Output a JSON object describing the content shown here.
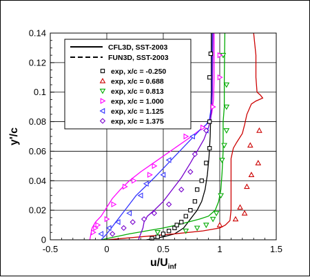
{
  "chart_data": {
    "type": "line",
    "xlabel": "u/U",
    "xlabel_sub": "inf",
    "ylabel": "y'/c",
    "xlim": [
      -0.5,
      1.5
    ],
    "ylim": [
      0,
      0.14
    ],
    "x_ticks": [
      -0.5,
      0,
      0.5,
      1,
      1.5
    ],
    "x_tick_labels": [
      "-0.5",
      "0",
      "0.5",
      "1",
      "1.5"
    ],
    "y_ticks": [
      0,
      0.02,
      0.04,
      0.06,
      0.08,
      0.1,
      0.12,
      0.14
    ],
    "y_tick_labels": [
      "0",
      "0.02",
      "0.04",
      "0.06",
      "0.08",
      "0.1",
      "0.12",
      "0.14"
    ],
    "grid": true,
    "legend_position": "top-left",
    "legend_lines": [
      {
        "label": "CFL3D, SST-2003",
        "style": "solid"
      },
      {
        "label": "FUN3D, SST-2003",
        "style": "dashed"
      }
    ],
    "series": [
      {
        "name": "exp, x/c = -0.250",
        "marker": "square",
        "color": "#000000",
        "points": [
          [
            0.4,
            0.001
          ],
          [
            0.45,
            0.002
          ],
          [
            0.5,
            0.004
          ],
          [
            0.55,
            0.006
          ],
          [
            0.6,
            0.008
          ],
          [
            0.62,
            0.01
          ],
          [
            0.66,
            0.012
          ],
          [
            0.7,
            0.016
          ],
          [
            0.74,
            0.02
          ],
          [
            0.78,
            0.026
          ],
          [
            0.8,
            0.034
          ],
          [
            0.84,
            0.04
          ],
          [
            0.88,
            0.052
          ],
          [
            0.91,
            0.062
          ],
          [
            0.91,
            0.08
          ],
          [
            0.91,
            0.11
          ],
          [
            0.92,
            0.126
          ]
        ],
        "curve": [
          [
            0.35,
            0
          ],
          [
            0.5,
            0.002
          ],
          [
            0.6,
            0.004
          ],
          [
            0.68,
            0.008
          ],
          [
            0.72,
            0.012
          ],
          [
            0.76,
            0.016
          ],
          [
            0.8,
            0.02
          ],
          [
            0.84,
            0.026
          ],
          [
            0.87,
            0.034
          ],
          [
            0.89,
            0.044
          ],
          [
            0.905,
            0.056
          ],
          [
            0.915,
            0.07
          ],
          [
            0.92,
            0.085
          ],
          [
            0.925,
            0.1
          ],
          [
            0.925,
            0.14
          ]
        ]
      },
      {
        "name": "exp, x/c = 0.688",
        "marker": "triangle-up",
        "color": "#cc0000",
        "points": [
          [
            1.0,
            0.01
          ],
          [
            1.14,
            0.014
          ],
          [
            1.22,
            0.018
          ],
          [
            1.18,
            0.022
          ],
          [
            1.24,
            0.036
          ],
          [
            1.28,
            0.044
          ],
          [
            1.34,
            0.052
          ],
          [
            1.27,
            0.064
          ],
          [
            1.35,
            0.074
          ]
        ],
        "curve": [
          [
            0.0,
            0.0
          ],
          [
            0.3,
            0.002
          ],
          [
            0.6,
            0.004
          ],
          [
            0.85,
            0.006
          ],
          [
            1.0,
            0.008
          ],
          [
            1.05,
            0.01
          ],
          [
            1.09,
            0.013
          ],
          [
            1.1,
            0.02
          ],
          [
            1.1,
            0.04
          ],
          [
            1.1,
            0.055
          ],
          [
            1.12,
            0.062
          ],
          [
            1.15,
            0.066
          ],
          [
            1.2,
            0.072
          ],
          [
            1.22,
            0.078
          ],
          [
            1.24,
            0.085
          ],
          [
            1.28,
            0.092
          ],
          [
            1.32,
            0.094
          ],
          [
            1.38,
            0.096
          ],
          [
            1.36,
            0.098
          ],
          [
            1.33,
            0.1
          ],
          [
            1.32,
            0.11
          ],
          [
            1.32,
            0.125
          ],
          [
            1.3,
            0.14
          ]
        ]
      },
      {
        "name": "exp, x/c = 0.813",
        "marker": "triangle-down",
        "color": "#00aa00",
        "points": [
          [
            0.45,
            0.005
          ],
          [
            0.7,
            0.006
          ],
          [
            0.8,
            0.008
          ],
          [
            0.88,
            0.01
          ],
          [
            0.94,
            0.014
          ],
          [
            0.97,
            0.018
          ],
          [
            1.01,
            0.03
          ],
          [
            1.02,
            0.054
          ],
          [
            1.04,
            0.064
          ],
          [
            1.06,
            0.074
          ],
          [
            1.06,
            0.09
          ],
          [
            1.06,
            0.105
          ],
          [
            1.03,
            0.125
          ]
        ],
        "curve": [
          [
            -0.05,
            0
          ],
          [
            0.2,
            0.004
          ],
          [
            0.35,
            0.006
          ],
          [
            0.5,
            0.008
          ],
          [
            0.62,
            0.01
          ],
          [
            0.72,
            0.012
          ],
          [
            0.82,
            0.014
          ],
          [
            0.9,
            0.016
          ],
          [
            0.96,
            0.02
          ],
          [
            0.99,
            0.026
          ],
          [
            1.01,
            0.034
          ],
          [
            1.02,
            0.045
          ],
          [
            1.03,
            0.06
          ],
          [
            1.03,
            0.07
          ],
          [
            1.03,
            0.08
          ],
          [
            1.04,
            0.09
          ],
          [
            1.04,
            0.11
          ],
          [
            1.045,
            0.14
          ]
        ]
      },
      {
        "name": "exp, x/c = 1.000",
        "marker": "triangle-right",
        "color": "#ff00ff",
        "points": [
          [
            -0.12,
            0.005
          ],
          [
            -0.1,
            0.008
          ],
          [
            -0.08,
            0.01
          ],
          [
            0.0,
            0.014
          ],
          [
            0.06,
            0.024
          ],
          [
            0.16,
            0.036
          ],
          [
            0.24,
            0.04
          ],
          [
            0.38,
            0.044
          ],
          [
            0.42,
            0.05
          ],
          [
            0.7,
            0.07
          ],
          [
            0.85,
            0.076
          ],
          [
            0.94,
            0.09
          ],
          [
            1.0,
            0.11
          ],
          [
            1.0,
            0.125
          ]
        ],
        "curve": [
          [
            -0.15,
            0
          ],
          [
            -0.14,
            0.004
          ],
          [
            -0.13,
            0.008
          ],
          [
            -0.1,
            0.012
          ],
          [
            -0.05,
            0.016
          ],
          [
            0.0,
            0.022
          ],
          [
            0.05,
            0.028
          ],
          [
            0.12,
            0.034
          ],
          [
            0.2,
            0.04
          ],
          [
            0.3,
            0.046
          ],
          [
            0.45,
            0.054
          ],
          [
            0.6,
            0.062
          ],
          [
            0.75,
            0.07
          ],
          [
            0.85,
            0.076
          ],
          [
            0.91,
            0.08
          ],
          [
            0.93,
            0.086
          ],
          [
            0.945,
            0.095
          ],
          [
            0.95,
            0.11
          ],
          [
            0.95,
            0.14
          ]
        ]
      },
      {
        "name": "exp, x/c = 1.125",
        "marker": "triangle-left",
        "color": "#3333ff",
        "points": [
          [
            -0.05,
            0.004
          ],
          [
            0.02,
            0.008
          ],
          [
            0.1,
            0.012
          ],
          [
            0.2,
            0.018
          ],
          [
            0.3,
            0.03
          ],
          [
            0.35,
            0.038
          ],
          [
            0.5,
            0.044
          ],
          [
            0.55,
            0.054
          ],
          [
            0.76,
            0.07
          ],
          [
            0.88,
            0.074
          ]
        ],
        "curve": [
          [
            -0.05,
            0
          ],
          [
            0.0,
            0.004
          ],
          [
            0.04,
            0.008
          ],
          [
            0.08,
            0.012
          ],
          [
            0.14,
            0.018
          ],
          [
            0.2,
            0.024
          ],
          [
            0.26,
            0.03
          ],
          [
            0.34,
            0.036
          ],
          [
            0.42,
            0.042
          ],
          [
            0.52,
            0.05
          ],
          [
            0.62,
            0.058
          ],
          [
            0.72,
            0.066
          ],
          [
            0.82,
            0.074
          ],
          [
            0.88,
            0.078
          ],
          [
            0.91,
            0.082
          ],
          [
            0.925,
            0.09
          ],
          [
            0.93,
            0.1
          ],
          [
            0.935,
            0.14
          ]
        ]
      },
      {
        "name": "exp, x/c = 1.375",
        "marker": "diamond",
        "color": "#7700cc",
        "points": [
          [
            0.05,
            0.004
          ],
          [
            0.15,
            0.008
          ],
          [
            0.23,
            0.012
          ],
          [
            0.33,
            0.014
          ],
          [
            0.42,
            0.018
          ],
          [
            0.55,
            0.024
          ],
          [
            0.66,
            0.034
          ],
          [
            0.74,
            0.046
          ],
          [
            0.78,
            0.058
          ],
          [
            0.88,
            0.074
          ]
        ],
        "curve": [
          [
            0.28,
            0
          ],
          [
            0.3,
            0.004
          ],
          [
            0.32,
            0.008
          ],
          [
            0.33,
            0.012
          ],
          [
            0.36,
            0.016
          ],
          [
            0.42,
            0.02
          ],
          [
            0.5,
            0.026
          ],
          [
            0.58,
            0.034
          ],
          [
            0.66,
            0.042
          ],
          [
            0.74,
            0.052
          ],
          [
            0.8,
            0.06
          ],
          [
            0.86,
            0.068
          ],
          [
            0.9,
            0.076
          ],
          [
            0.92,
            0.082
          ],
          [
            0.93,
            0.09
          ],
          [
            0.935,
            0.1
          ],
          [
            0.94,
            0.14
          ]
        ]
      }
    ]
  }
}
